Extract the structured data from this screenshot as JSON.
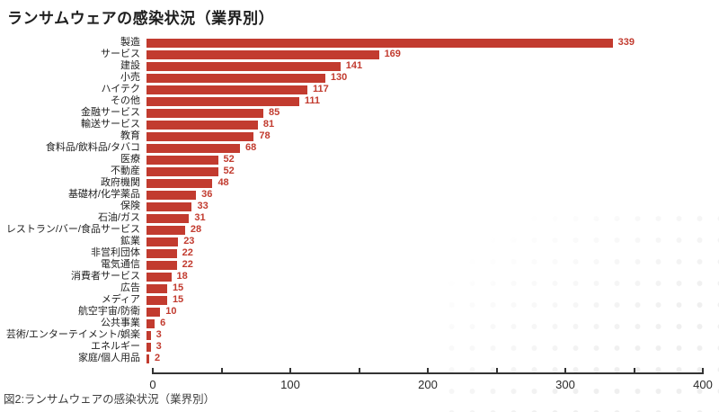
{
  "page": {
    "title": "ランサムウェアの感染状況（業界別）",
    "caption": "図2:ランサムウェアの感染状況（業界別）"
  },
  "colors": {
    "bar": "#c23b2f",
    "title": "#1f1f1f",
    "category_label": "#222222",
    "axis": "#333333",
    "tick_label": "#2b2b2b",
    "caption": "#3d3d3d",
    "background": "#ffffff",
    "dot_pattern": "#ececec"
  },
  "chart_data": {
    "type": "bar",
    "orientation": "horizontal",
    "title": "ランサムウェアの感染状況（業界別）",
    "xlabel": "",
    "ylabel": "",
    "grid": "off",
    "legend": "none",
    "value_labels": "shown at bar end",
    "xlim": [
      0,
      400
    ],
    "x_ticks": [
      0,
      50,
      100,
      150,
      200,
      250,
      300,
      350,
      400
    ],
    "x_labeled_ticks": [
      0,
      100,
      200,
      300,
      400
    ],
    "categories": [
      "製造",
      "サービス",
      "建設",
      "小売",
      "ハイテク",
      "その他",
      "金融サービス",
      "輸送サービス",
      "教育",
      "食料品/飲料品/タバコ",
      "医療",
      "不動産",
      "政府機関",
      "基礎材/化学薬品",
      "保険",
      "石油/ガス",
      "レストラン/バー/食品サービス",
      "鉱業",
      "非営利団体",
      "電気通信",
      "消費者サービス",
      "広告",
      "メディア",
      "航空宇宙/防衛",
      "公共事業",
      "芸術/エンターテイメント/娯楽",
      "エネルギー",
      "家庭/個人用品"
    ],
    "values": [
      339,
      169,
      141,
      130,
      117,
      111,
      85,
      81,
      78,
      68,
      52,
      52,
      48,
      36,
      33,
      31,
      28,
      23,
      22,
      22,
      18,
      15,
      15,
      10,
      6,
      3,
      3,
      2
    ]
  }
}
